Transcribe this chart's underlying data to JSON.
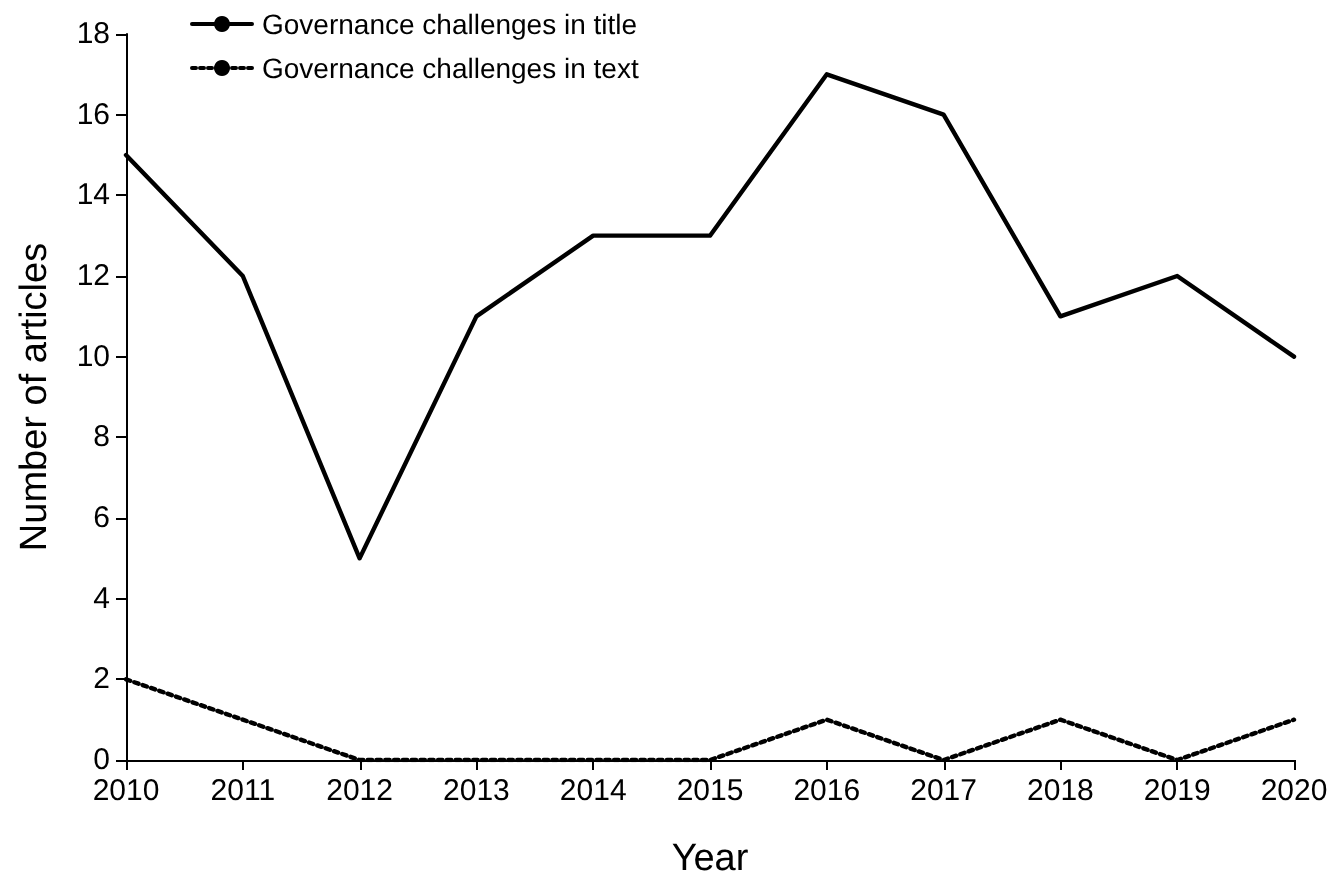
{
  "chart_data": {
    "type": "line",
    "xlabel": "Year",
    "ylabel": "Number of articles",
    "categories": [
      "2010",
      "2011",
      "2012",
      "2013",
      "2014",
      "2015",
      "2016",
      "2017",
      "2018",
      "2019",
      "2020"
    ],
    "series": [
      {
        "name": "Governance challenges in title",
        "color": "#000000",
        "line_style": "solid",
        "values": [
          15,
          12,
          5,
          11,
          13,
          13,
          17,
          16,
          11,
          12,
          10
        ]
      },
      {
        "name": "Governance challenges in text",
        "color": "#000000",
        "line_style": "dotted",
        "values": [
          2,
          1,
          0,
          0,
          0,
          0,
          1,
          0,
          1,
          0,
          1
        ]
      }
    ],
    "ylim": [
      0,
      18
    ],
    "yticks": [
      0,
      2,
      4,
      6,
      8,
      10,
      12,
      14,
      16,
      18
    ],
    "grid": false,
    "legend": "top left",
    "marker": "none"
  }
}
